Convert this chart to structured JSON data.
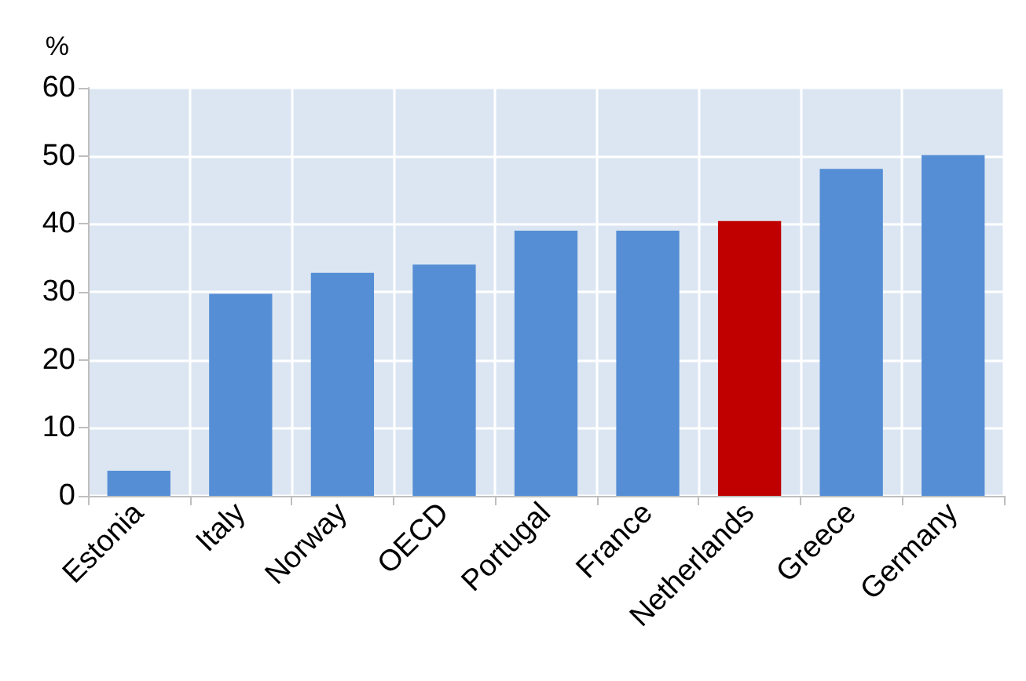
{
  "chart_data": {
    "type": "bar",
    "ylabel": "%",
    "categories": [
      "Estonia",
      "Italy",
      "Norway",
      "OECD",
      "Portugal",
      "France",
      "Netherlands",
      "Greece",
      "Germany"
    ],
    "values": [
      3.7,
      29.7,
      32.8,
      34,
      39,
      39,
      40.4,
      48.1,
      50.1
    ],
    "colors": [
      "#558ed5",
      "#558ed5",
      "#558ed5",
      "#558ed5",
      "#558ed5",
      "#558ed5",
      "#c00000",
      "#558ed5",
      "#558ed5"
    ],
    "ylim": [
      0,
      60
    ],
    "yticks": [
      0,
      10,
      20,
      30,
      40,
      50,
      60
    ],
    "grid": true
  }
}
